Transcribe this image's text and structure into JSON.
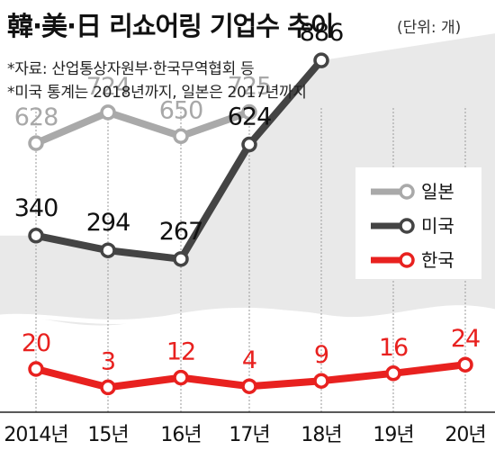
{
  "header": {
    "title": "韓·美·日 리쇼어링 기업수 추이",
    "unit": "(단위: 개)",
    "note_source": "*자료: 산업통상자원부·한국무역협회 등",
    "note_period": "*미국 통계는 2018년까지, 일본은 2017년까지"
  },
  "chart_data": {
    "type": "line",
    "title": "韓·美·日 리쇼어링 기업수 추이",
    "unit": "(단위: 개)",
    "categories": [
      "2014년",
      "15년",
      "16년",
      "17년",
      "18년",
      "19년",
      "20년"
    ],
    "axis_broken": true,
    "series": [
      {
        "name": "일본",
        "color": "#a9a9a9",
        "values": [
          628,
          724,
          650,
          725,
          null,
          null,
          null
        ]
      },
      {
        "name": "미국",
        "color": "#444444",
        "values": [
          340,
          294,
          267,
          624,
          886,
          null,
          null
        ]
      },
      {
        "name": "한국",
        "color": "#e8211f",
        "values": [
          20,
          3,
          12,
          4,
          9,
          16,
          24
        ]
      }
    ],
    "legend_position": "right"
  }
}
